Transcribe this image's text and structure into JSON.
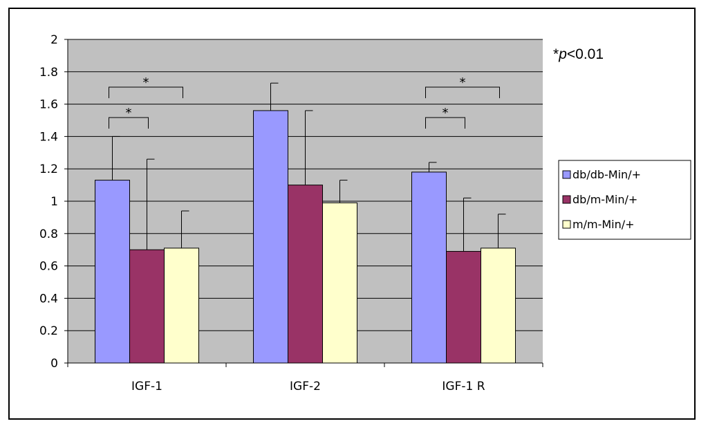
{
  "chart_data": {
    "type": "bar",
    "categories": [
      "IGF-1",
      "IGF-2",
      "IGF-1 R"
    ],
    "series": [
      {
        "name": "db/db-Min/+",
        "color": "#9999ff",
        "values": [
          1.13,
          1.56,
          1.18
        ],
        "errors": [
          0.27,
          0.17,
          0.06
        ]
      },
      {
        "name": "db/m-Min/+",
        "color": "#993366",
        "values": [
          0.7,
          1.1,
          0.69
        ],
        "errors": [
          0.56,
          0.46,
          0.33
        ]
      },
      {
        "name": "m/m-Min/+",
        "color": "#ffffcc",
        "values": [
          0.71,
          0.99,
          0.71
        ],
        "errors": [
          0.23,
          0.14,
          0.21
        ]
      }
    ],
    "ylim": [
      0,
      2
    ],
    "yticks": [
      "0",
      "0.2",
      "0.4",
      "0.6",
      "0.8",
      "1",
      "1.2",
      "1.4",
      "1.6",
      "1.8",
      "2"
    ],
    "grid": true,
    "legend_position": "right",
    "plot_background": "#c0c0c0",
    "significance_note": {
      "star": "*",
      "p": "p",
      "rest": "<0.01"
    },
    "significance": [
      {
        "category": 0,
        "from_series": 0,
        "to_series": 1,
        "level": 1,
        "label": "*"
      },
      {
        "category": 0,
        "from_series": 0,
        "to_series": 2,
        "level": 2,
        "label": "*"
      },
      {
        "category": 2,
        "from_series": 0,
        "to_series": 1,
        "level": 1,
        "label": "*"
      },
      {
        "category": 2,
        "from_series": 0,
        "to_series": 2,
        "level": 2,
        "label": "*"
      }
    ]
  }
}
